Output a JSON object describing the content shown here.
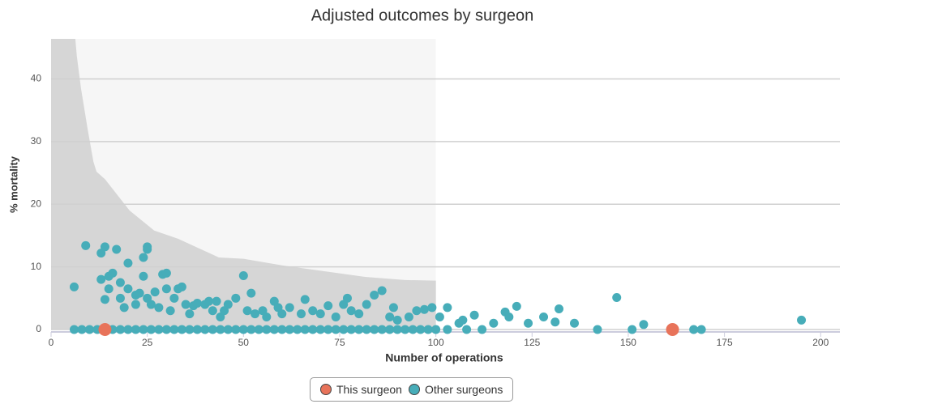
{
  "chart_data": {
    "type": "scatter",
    "title": "Adjusted outcomes by surgeon",
    "xlabel": "Number of operations",
    "ylabel": "% mortality",
    "xlim": [
      0,
      205
    ],
    "ylim": [
      0,
      46.4
    ],
    "xticks": [
      0,
      25,
      50,
      75,
      100,
      125,
      150,
      175,
      200
    ],
    "yticks": [
      0,
      10,
      20,
      30,
      40
    ],
    "grid": true,
    "legend": "bottom",
    "shaded_xlim": [
      0,
      100
    ],
    "funnel": {
      "color": "#d6d6d6",
      "x": [
        6.3,
        6.7,
        7.8,
        9.5,
        11,
        11.8,
        14,
        20.4,
        26.8,
        33,
        43.6,
        50,
        60.5,
        71,
        81.6,
        92,
        100
      ],
      "values": [
        46.4,
        43.6,
        38.4,
        32,
        26.8,
        25.2,
        24,
        19,
        15.8,
        14.5,
        11.5,
        11.3,
        10.2,
        9.3,
        8.4,
        7.9,
        7.8
      ]
    },
    "series": [
      {
        "name": "This surgeon",
        "color": "#e8735a",
        "x": [
          14,
          161.5
        ],
        "values": [
          0,
          0
        ]
      },
      {
        "name": "Other surgeons",
        "color": "#47adb9",
        "x": [
          6,
          9,
          13,
          14,
          13,
          14,
          15,
          15,
          16,
          17,
          18,
          18,
          19,
          20,
          20,
          22,
          22,
          23,
          24,
          24,
          25,
          25,
          25,
          26,
          27,
          28,
          29,
          30,
          30,
          31,
          32,
          33,
          34,
          35,
          36,
          37,
          38,
          40,
          41,
          42,
          43,
          44,
          45,
          46,
          48,
          50,
          51,
          52,
          53,
          55,
          56,
          58,
          59,
          60,
          62,
          65,
          66,
          68,
          70,
          72,
          74,
          76,
          77,
          78,
          80,
          82,
          84,
          86,
          88,
          89,
          90,
          93,
          95,
          97,
          99,
          101,
          103,
          106,
          107,
          110,
          115,
          118,
          119,
          121,
          124,
          128,
          131,
          132,
          136,
          147,
          154,
          195,
          6,
          8,
          10,
          12,
          16,
          18,
          20,
          22,
          24,
          26,
          28,
          30,
          32,
          34,
          36,
          38,
          40,
          42,
          44,
          46,
          48,
          50,
          52,
          54,
          56,
          58,
          60,
          62,
          64,
          66,
          68,
          70,
          72,
          74,
          76,
          78,
          80,
          82,
          84,
          86,
          88,
          90,
          92,
          94,
          96,
          98,
          100,
          103,
          108,
          112,
          142,
          151,
          167,
          169
        ],
        "values": [
          6.8,
          13.4,
          12.2,
          13.2,
          8,
          4.8,
          6.5,
          8.5,
          9,
          12.8,
          5,
          7.5,
          3.5,
          6.5,
          10.6,
          5.5,
          4,
          5.8,
          11.5,
          8.5,
          12.8,
          13.2,
          5,
          4,
          6,
          3.5,
          8.8,
          9,
          6.5,
          3,
          5,
          6.5,
          6.8,
          4,
          2.5,
          3.8,
          4.2,
          4,
          4.5,
          3,
          4.5,
          2,
          3,
          4,
          5,
          8.6,
          3,
          5.8,
          2.5,
          3,
          2,
          4.5,
          3.5,
          2.5,
          3.5,
          2.5,
          4.8,
          3,
          2.5,
          3.8,
          2,
          4,
          5,
          3,
          2.5,
          4,
          5.5,
          6.2,
          2,
          3.5,
          1.5,
          2,
          3,
          3.2,
          3.5,
          2,
          3.5,
          1,
          1.5,
          2.3,
          1,
          2.8,
          2,
          3.7,
          1,
          2,
          1.2,
          3.3,
          1,
          5.1,
          0.8,
          1.5,
          0,
          0,
          0,
          0,
          0,
          0,
          0,
          0,
          0,
          0,
          0,
          0,
          0,
          0,
          0,
          0,
          0,
          0,
          0,
          0,
          0,
          0,
          0,
          0,
          0,
          0,
          0,
          0,
          0,
          0,
          0,
          0,
          0,
          0,
          0,
          0,
          0,
          0,
          0,
          0,
          0,
          0,
          0,
          0,
          0,
          0,
          0,
          0,
          0,
          0,
          0,
          0,
          0,
          0
        ]
      }
    ]
  }
}
